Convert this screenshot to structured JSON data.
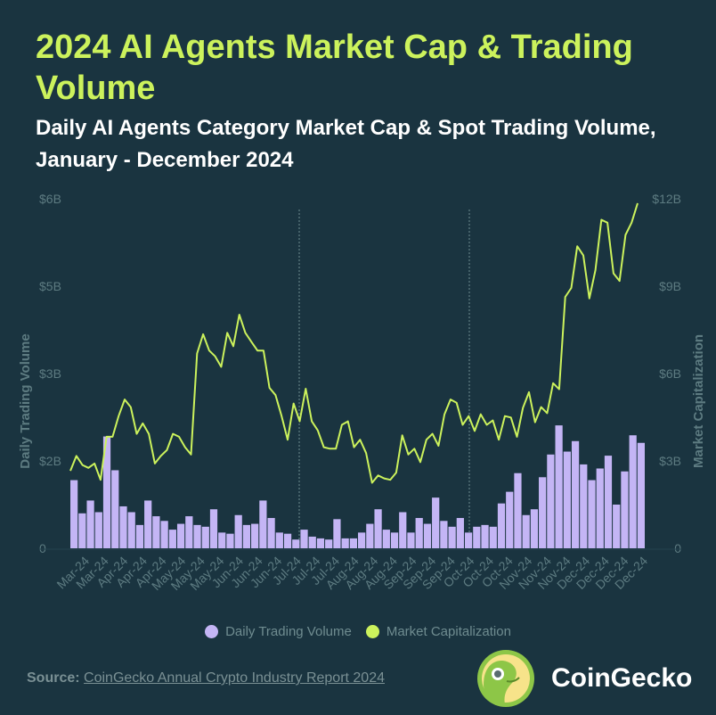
{
  "header": {
    "title": "2024 AI Agents Market Cap & Trading Volume",
    "subtitle": "Daily AI Agents Category Market Cap & Spot Trading Volume, January - December 2024"
  },
  "chart_data": {
    "type": "bar+line",
    "title": "2024 AI Agents Market Cap & Trading Volume",
    "ylabel_left": "Daily Trading Volume",
    "ylabel_right": "Market Capitalization",
    "left_ticks": [
      {
        "value": 0,
        "label": "0"
      },
      {
        "value": 1.5,
        "label": "$2B"
      },
      {
        "value": 3,
        "label": "$3B"
      },
      {
        "value": 4.5,
        "label": "$5B"
      },
      {
        "value": 6,
        "label": "$6B"
      }
    ],
    "right_ticks": [
      {
        "value": 0,
        "label": "0"
      },
      {
        "value": 3,
        "label": "$3B"
      },
      {
        "value": 6,
        "label": "$6B"
      },
      {
        "value": 9,
        "label": "$9B"
      },
      {
        "value": 12,
        "label": "$12B"
      }
    ],
    "ylim_left": [
      0,
      6
    ],
    "ylim_right": [
      0,
      12
    ],
    "x_tick_labels": [
      "Mar-24",
      "Mar-24",
      "Apr-24",
      "Apr-24",
      "Apr-24",
      "May-24",
      "May-24",
      "May-24",
      "Jun-24",
      "Jun-24",
      "Jun-24",
      "Jul-24",
      "Jul-24",
      "Jul-24",
      "Aug-24",
      "Aug-24",
      "Aug-24",
      "Sep-24",
      "Sep-24",
      "Sep-24",
      "Oct-24",
      "Oct-24",
      "Oct-24",
      "Nov-24",
      "Nov-24",
      "Nov-24",
      "Dec-24",
      "Dec-24",
      "Dec-24",
      "Dec-24"
    ],
    "grid": false,
    "legend_position": "bottom",
    "series": [
      {
        "name": "Daily Trading Volume",
        "type": "bar",
        "axis": "left",
        "unit": "B USD",
        "color": "#c4b5f5",
        "values": [
          1.17,
          0.6,
          0.82,
          0.62,
          1.92,
          1.34,
          0.72,
          0.62,
          0.4,
          0.82,
          0.55,
          0.47,
          0.32,
          0.42,
          0.55,
          0.4,
          0.37,
          0.67,
          0.27,
          0.25,
          0.57,
          0.4,
          0.42,
          0.82,
          0.52,
          0.27,
          0.25,
          0.15,
          0.32,
          0.2,
          0.17,
          0.15,
          0.5,
          0.17,
          0.17,
          0.27,
          0.42,
          0.67,
          0.32,
          0.27,
          0.62,
          0.27,
          0.52,
          0.42,
          0.87,
          0.47,
          0.37,
          0.52,
          0.27,
          0.37,
          0.4,
          0.37,
          0.77,
          0.97,
          1.29,
          0.57,
          0.67,
          1.22,
          1.61,
          2.11,
          1.66,
          1.84,
          1.44,
          1.17,
          1.37,
          1.59,
          0.75,
          1.32,
          1.94,
          1.81
        ]
      },
      {
        "name": "Market Capitalization",
        "type": "line",
        "axis": "right",
        "unit": "B USD",
        "color": "#ccf25c",
        "values": [
          2.66,
          3.17,
          2.86,
          2.76,
          2.91,
          2.35,
          3.83,
          3.83,
          4.54,
          5.11,
          4.85,
          3.93,
          4.29,
          3.93,
          2.91,
          3.17,
          3.37,
          3.93,
          3.83,
          3.47,
          3.22,
          6.69,
          7.35,
          6.79,
          6.59,
          6.23,
          7.4,
          6.94,
          8.02,
          7.4,
          7.09,
          6.79,
          6.79,
          5.51,
          5.26,
          4.54,
          3.73,
          4.97,
          4.36,
          5.48,
          4.36,
          4.05,
          3.47,
          3.42,
          3.42,
          4.24,
          4.36,
          3.47,
          3.73,
          3.27,
          2.25,
          2.5,
          2.4,
          2.35,
          2.6,
          3.88,
          3.22,
          3.42,
          2.96,
          3.73,
          3.93,
          3.52,
          4.6,
          5.11,
          5.0,
          4.24,
          4.54,
          4.03,
          4.6,
          4.24,
          4.39,
          3.73,
          4.54,
          4.49,
          3.83,
          4.82,
          5.36,
          4.33,
          4.85,
          4.64,
          5.67,
          5.46,
          8.63,
          8.94,
          10.37,
          10.06,
          8.58,
          9.55,
          11.28,
          11.18,
          9.44,
          9.18,
          10.76,
          11.18,
          11.85
        ]
      }
    ]
  },
  "legend": {
    "items": [
      {
        "label": "Daily Trading Volume",
        "color": "#c4b5f5"
      },
      {
        "label": "Market Capitalization",
        "color": "#ccf25c"
      }
    ]
  },
  "footer": {
    "source_label": "Source:",
    "source_link": "CoinGecko Annual Crypto Industry Report 2024",
    "brand": "CoinGecko"
  }
}
